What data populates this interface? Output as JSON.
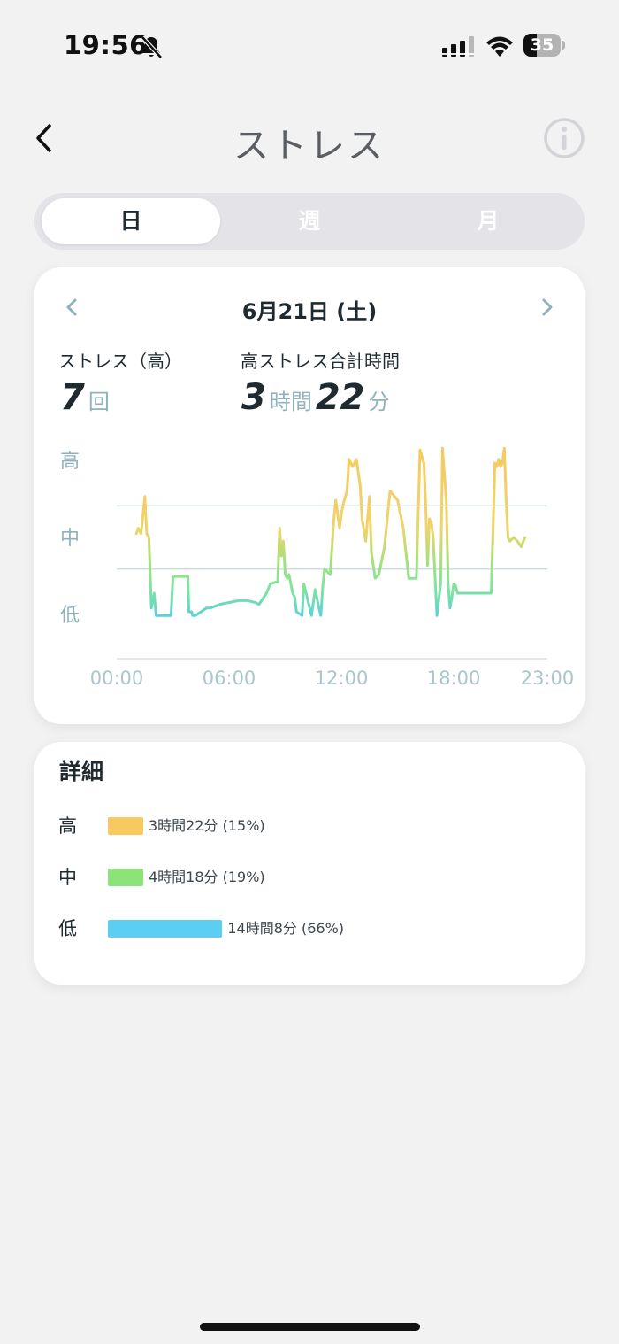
{
  "status_bar": {
    "time": "19:56",
    "battery_level": "35",
    "battery_fraction": 0.35
  },
  "header": {
    "title": "ストレス"
  },
  "tabs": [
    {
      "label": "日",
      "active": true
    },
    {
      "label": "週",
      "active": false
    },
    {
      "label": "月",
      "active": false
    }
  ],
  "summary": {
    "date": "6月21日 (土)",
    "high_stress_count_label": "ストレス（高）",
    "high_stress_count": "7",
    "high_stress_count_unit": "回",
    "high_stress_total_label": "高ストレス合計時間",
    "hours": "3",
    "hours_unit": "時間",
    "minutes": "22",
    "minutes_unit": "分"
  },
  "chart_data": {
    "type": "line",
    "title": "",
    "xlabel": "",
    "ylabel": "",
    "x_ticks": [
      "00:00",
      "06:00",
      "12:00",
      "18:00",
      "23:00"
    ],
    "y_ticks": [
      "高",
      "中",
      "低"
    ],
    "xlim": [
      0,
      23
    ],
    "ylim": [
      0,
      100
    ],
    "thresholds": [
      33,
      67
    ],
    "grid": true,
    "colors": {
      "high": "#f7c95f",
      "mid": "#8de37a",
      "low": "#5ccdf3"
    },
    "series": [
      {
        "x": [
          1.05,
          1.15,
          1.3,
          1.5,
          1.6,
          1.72,
          1.85,
          2.0,
          2.1,
          2.3,
          2.9,
          3.0,
          3.05,
          3.7,
          3.8,
          3.85,
          4.0,
          4.05,
          4.2,
          4.8,
          5.0,
          5.5,
          6.0,
          6.5,
          6.6,
          7.0,
          7.4,
          7.6,
          8.0,
          8.2,
          8.5,
          8.6,
          8.7,
          8.8,
          8.9,
          9.0,
          9.1,
          9.2,
          9.4,
          9.5,
          9.6,
          9.9,
          10.0,
          10.4,
          10.6,
          10.8,
          10.9,
          11.0,
          11.1,
          11.4,
          11.6,
          11.7,
          11.9,
          12.0,
          12.1,
          12.3,
          12.4,
          12.6,
          12.8,
          13.0,
          13.1,
          13.3,
          13.5,
          13.6,
          13.8,
          14.0,
          14.3,
          14.6,
          15.0,
          15.3,
          15.6,
          16.0,
          16.2,
          16.4,
          16.5,
          16.6,
          16.7,
          16.8,
          16.9,
          17.1,
          17.3,
          17.4,
          17.6,
          17.7,
          17.8,
          17.9,
          18.0,
          18.1,
          18.2,
          18.4,
          18.8,
          19.5,
          20.0,
          20.2,
          20.3,
          20.4,
          20.5,
          20.6,
          20.7,
          20.8,
          20.9,
          21.0,
          21.2,
          21.4,
          21.6,
          21.8
        ],
        "values": [
          52,
          55,
          52,
          72,
          52,
          50,
          12,
          20,
          8,
          8,
          8,
          28,
          29,
          29,
          29,
          10,
          10,
          8,
          8,
          12,
          12,
          14,
          15,
          16,
          16,
          16,
          15,
          14,
          20,
          25,
          26,
          26,
          55,
          40,
          48,
          30,
          28,
          30,
          20,
          18,
          10,
          8,
          25,
          8,
          22,
          12,
          8,
          23,
          33,
          30,
          60,
          70,
          55,
          63,
          68,
          75,
          92,
          88,
          92,
          78,
          60,
          48,
          72,
          42,
          28,
          30,
          45,
          75,
          70,
          55,
          28,
          28,
          97,
          90,
          68,
          35,
          60,
          58,
          50,
          8,
          25,
          98,
          70,
          25,
          12,
          18,
          25,
          24,
          20,
          20,
          20,
          20,
          20,
          90,
          88,
          92,
          88,
          90,
          98,
          70,
          50,
          48,
          50,
          48,
          45,
          50
        ]
      }
    ]
  },
  "detail": {
    "title": "詳細",
    "rows": [
      {
        "level": "高",
        "value": "3時間22分 (15%)",
        "fraction": 0.15,
        "color": "#f7c95f"
      },
      {
        "level": "中",
        "value": "4時間18分 (19%)",
        "fraction": 0.19,
        "color": "#8de37a"
      },
      {
        "level": "低",
        "value": "14時間8分 (66%)",
        "fraction": 0.66,
        "color": "#5ccdf3"
      }
    ]
  }
}
